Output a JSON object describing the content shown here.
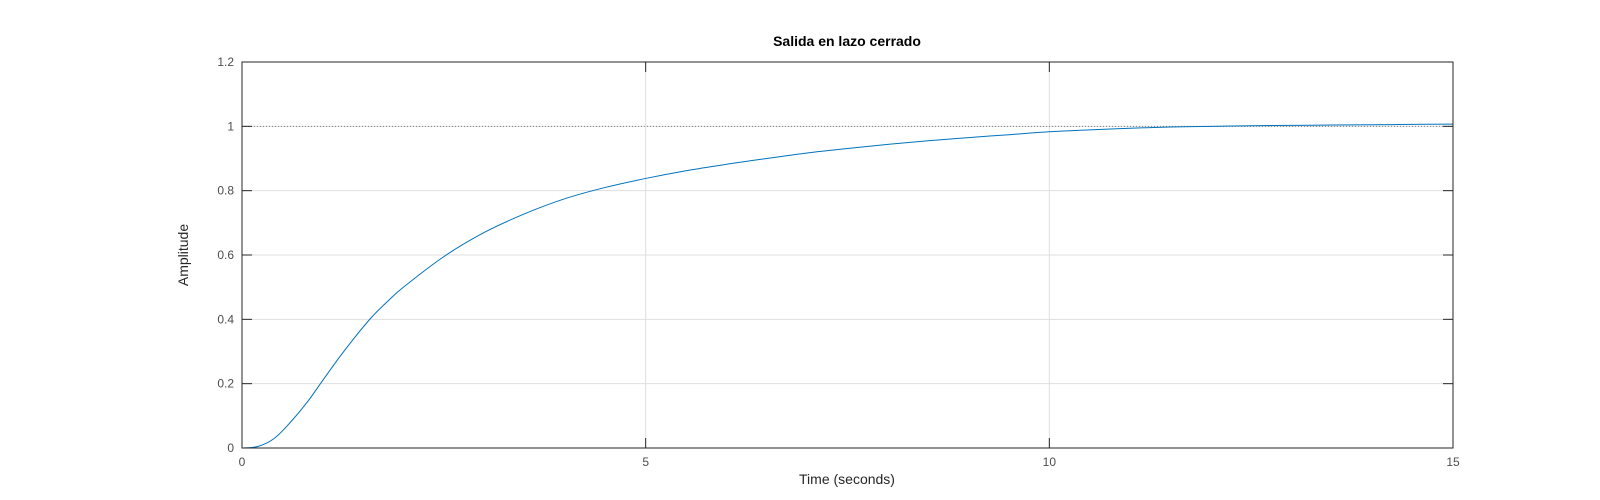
{
  "chart_data": {
    "type": "line",
    "title": "Salida en lazo cerrado",
    "xlabel": "Time (seconds)",
    "ylabel": "Amplitude",
    "xlim": [
      0,
      15
    ],
    "ylim": [
      0,
      1.2
    ],
    "xticks": [
      0,
      5,
      10,
      15
    ],
    "yticks": [
      0,
      0.2,
      0.4,
      0.6,
      0.8,
      1,
      1.2
    ],
    "xtick_labels": [
      "0",
      "5",
      "10",
      "15"
    ],
    "ytick_labels": [
      "0",
      "0.2",
      "0.4",
      "0.6",
      "0.8",
      "1",
      "1.2"
    ],
    "grid": true,
    "reference_line": {
      "y": 1,
      "style": "dotted"
    },
    "series": [
      {
        "color": "#0072bd",
        "x": [
          0,
          0.2,
          0.4,
          0.6,
          0.8,
          1.0,
          1.2,
          1.4,
          1.6,
          1.8,
          2.0,
          2.5,
          3.0,
          3.5,
          4.0,
          4.5,
          5.0,
          5.5,
          6.0,
          6.5,
          7.0,
          7.5,
          8.0,
          8.5,
          9.0,
          9.5,
          10.0,
          10.5,
          11.0,
          11.5,
          12.0,
          12.5,
          13.0,
          13.5,
          14.0,
          14.5,
          15.0
        ],
        "y": [
          0,
          0.005,
          0.03,
          0.08,
          0.14,
          0.21,
          0.28,
          0.345,
          0.405,
          0.455,
          0.5,
          0.595,
          0.67,
          0.728,
          0.775,
          0.81,
          0.838,
          0.862,
          0.882,
          0.9,
          0.917,
          0.931,
          0.944,
          0.955,
          0.965,
          0.974,
          0.983,
          0.989,
          0.994,
          0.998,
          1.0,
          1.002,
          1.003,
          1.004,
          1.005,
          1.006,
          1.007
        ]
      }
    ]
  }
}
